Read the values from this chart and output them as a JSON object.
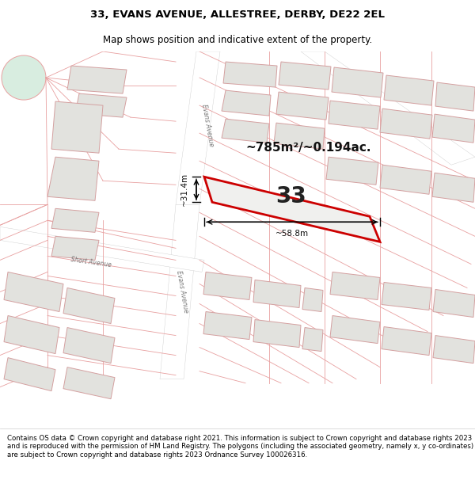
{
  "title": "33, EVANS AVENUE, ALLESTREE, DERBY, DE22 2EL",
  "subtitle": "Map shows position and indicative extent of the property.",
  "footer": "Contains OS data © Crown copyright and database right 2021. This information is subject to Crown copyright and database rights 2023 and is reproduced with the permission of HM Land Registry. The polygons (including the associated geometry, namely x, y co-ordinates) are subject to Crown copyright and database rights 2023 Ordnance Survey 100026316.",
  "bg_color": "#f7f7f5",
  "map_bg": "#f7f7f5",
  "road_color": "#ffffff",
  "plot_outline_color": "#cc0000",
  "plot_fill_color": "#f0f0ee",
  "building_fill": "#e2e2de",
  "building_outline": "#d4a0a0",
  "parcel_line": "#e8a0a0",
  "area_label": "~785m²/~0.194ac.",
  "width_label": "~58.8m",
  "height_label": "~31.4m",
  "plot_number": "33",
  "title_fontsize": 9.5,
  "subtitle_fontsize": 8.5,
  "footer_fontsize": 6.2
}
